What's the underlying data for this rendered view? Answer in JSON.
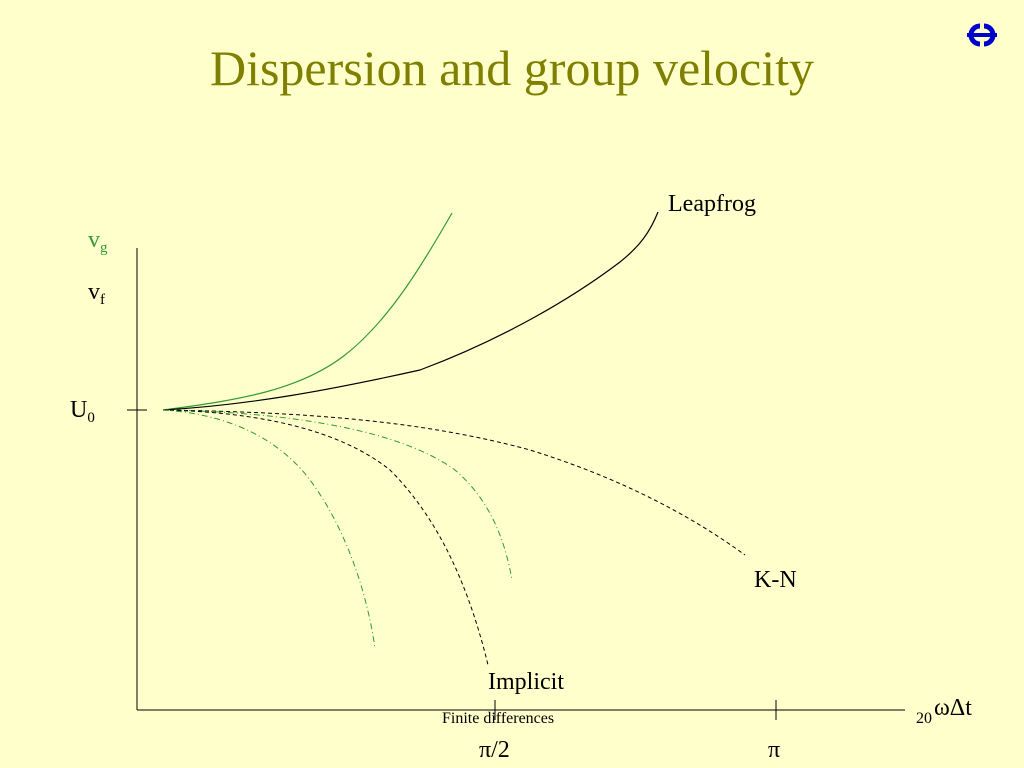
{
  "slide": {
    "title": "Dispersion and group velocity",
    "footer": "Finite differences",
    "page_number": "20",
    "logo_icon": "ecmwf-logo-icon"
  },
  "diagram": {
    "y_labels": {
      "vg_main": "v",
      "vg_sub": "g",
      "vf_main": "v",
      "vf_sub": "f",
      "u0_main": "U",
      "u0_sub": "0"
    },
    "x_axis_label": "ωΔt",
    "x_ticks": [
      "π/2",
      "π"
    ],
    "curve_labels": {
      "leapfrog": "Leapfrog",
      "kn": "K-N",
      "implicit": "Implicit"
    },
    "colors": {
      "title": "#808000",
      "group_velocity": "#339933",
      "phase_velocity": "#000000",
      "logo": "#0000cc",
      "background": "#ffffcc"
    }
  }
}
